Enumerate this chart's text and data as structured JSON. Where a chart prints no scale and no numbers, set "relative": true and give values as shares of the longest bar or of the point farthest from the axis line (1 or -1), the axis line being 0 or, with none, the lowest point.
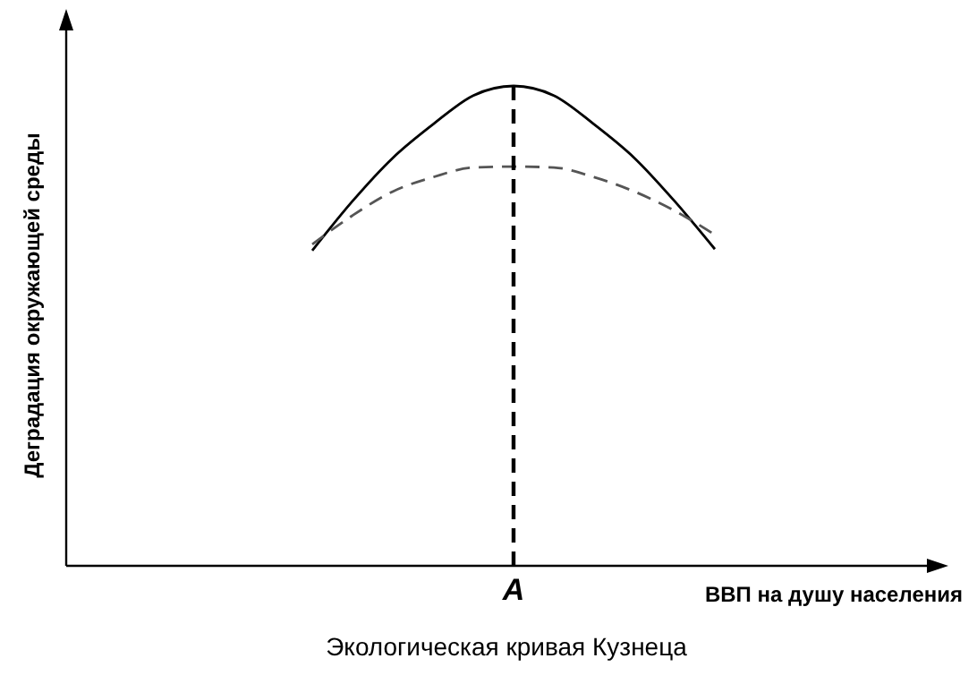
{
  "chart_data": {
    "type": "line",
    "title": "Экологическая кривая Кузнеца",
    "xlabel": "ВВП на душу населения",
    "ylabel": "Деградация окружающей среды",
    "relative": true,
    "categories": [
      null,
      null,
      null,
      null,
      null,
      null,
      null,
      null,
      null,
      null,
      null,
      null,
      null,
      null,
      null,
      null,
      null,
      null,
      null,
      null,
      null
    ],
    "annotations": [
      "A"
    ],
    "series": [
      {
        "color": "#000000",
        "line_style": "solid",
        "values": [
          null,
          null,
          null,
          null,
          null,
          0.657,
          0.76,
          0.85,
          0.92,
          0.98,
          1,
          0.98,
          0.92,
          0.85,
          0.76,
          0.66,
          null,
          null,
          null,
          null,
          null
        ]
      },
      {
        "color": "#555555",
        "line_style": "dashed",
        "values": [
          null,
          null,
          null,
          null,
          null,
          0.67,
          0.73,
          0.78,
          0.81,
          0.83,
          0.832,
          0.83,
          0.81,
          0.78,
          0.74,
          0.69,
          null,
          null,
          null,
          null,
          null
        ]
      }
    ]
  }
}
